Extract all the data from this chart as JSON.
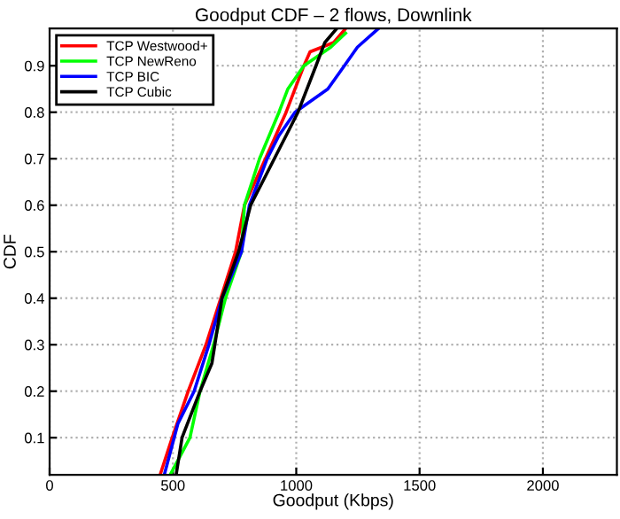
{
  "chart_data": {
    "type": "line",
    "title": "Goodput CDF – 2 flows, Downlink",
    "xlabel": "Goodput (Kbps)",
    "ylabel": "CDF",
    "xlim": [
      0,
      2300
    ],
    "xticks": [
      0,
      500,
      1000,
      1500,
      2000
    ],
    "ylim": [
      0.02,
      0.98
    ],
    "yticks": [
      0.1,
      0.2,
      0.3,
      0.4,
      0.5,
      0.6,
      0.7,
      0.8,
      0.9
    ],
    "grid": true,
    "legend": "top left",
    "series": [
      {
        "name": "TCP Westwood+",
        "color": "#ff0000",
        "x": [
          448,
          497,
          562,
          634,
          694,
          754,
          790,
          875,
          959,
          995,
          1031,
          1056,
          1152,
          1200
        ],
        "values": [
          0.02,
          0.1,
          0.2,
          0.3,
          0.4,
          0.5,
          0.6,
          0.7,
          0.8,
          0.85,
          0.9,
          0.93,
          0.95,
          0.98
        ]
      },
      {
        "name": "TCP NewReno",
        "color": "#00ff00",
        "x": [
          489,
          569,
          610,
          665,
          713,
          778,
          790,
          851,
          930,
          966,
          1031,
          1140,
          1200
        ],
        "values": [
          0.02,
          0.1,
          0.2,
          0.3,
          0.4,
          0.5,
          0.6,
          0.7,
          0.8,
          0.85,
          0.9,
          0.94,
          0.97
        ]
      },
      {
        "name": "TCP BIC",
        "color": "#0000ff",
        "x": [
          465,
          520,
          586,
          646,
          699,
          778,
          810,
          882,
          930,
          995,
          1128,
          1195,
          1248,
          1333
        ],
        "values": [
          0.02,
          0.13,
          0.2,
          0.3,
          0.4,
          0.5,
          0.6,
          0.7,
          0.75,
          0.8,
          0.85,
          0.9,
          0.94,
          0.98
        ]
      },
      {
        "name": "TCP Cubic",
        "color": "#000000",
        "x": [
          513,
          537,
          610,
          658,
          670,
          699,
          766,
          815,
          911,
          1007,
          1080,
          1116,
          1164
        ],
        "values": [
          0.02,
          0.1,
          0.2,
          0.26,
          0.3,
          0.4,
          0.5,
          0.6,
          0.7,
          0.8,
          0.9,
          0.95,
          0.98
        ]
      }
    ]
  }
}
